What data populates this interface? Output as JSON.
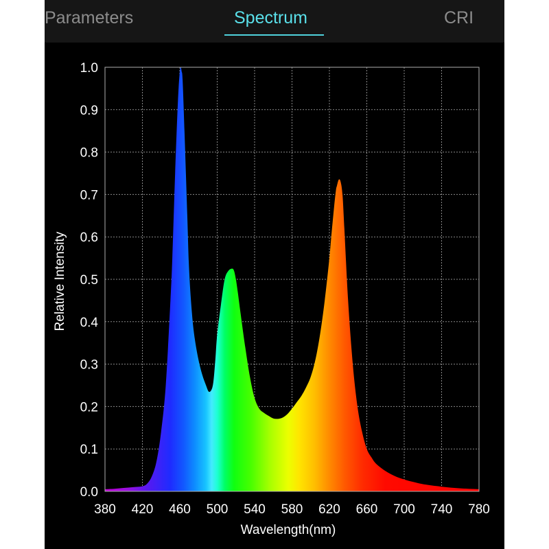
{
  "tabs": [
    {
      "label": "Parameters",
      "active": false
    },
    {
      "label": "Spectrum",
      "active": true
    },
    {
      "label": "CRI",
      "active": false
    }
  ],
  "colors": {
    "accent": "#4fd3dd",
    "tab_inactive": "#8c8c8c",
    "tabbar_bg": "#161616",
    "background": "#000000",
    "grid": "#9a9a9a",
    "text": "#ffffff"
  },
  "chart_data": {
    "type": "area",
    "title": "",
    "xlabel": "Wavelength(nm)",
    "ylabel": "Relative Intensity",
    "xlim": [
      380,
      780
    ],
    "ylim": [
      0,
      1
    ],
    "x_ticks": [
      380,
      420,
      460,
      500,
      540,
      580,
      620,
      660,
      700,
      740,
      780
    ],
    "y_ticks": [
      "0.0",
      "0.1",
      "0.2",
      "0.3",
      "0.4",
      "0.5",
      "0.6",
      "0.7",
      "0.8",
      "0.9",
      "1.0"
    ],
    "grid": true,
    "fill": "visible-spectrum color gradient",
    "series": [
      {
        "x": [
          380,
          390,
          400,
          410,
          420,
          425,
          430,
          435,
          440,
          445,
          450,
          452,
          455,
          458,
          460,
          461,
          462,
          463,
          465,
          468,
          470,
          473,
          476,
          480,
          484,
          488,
          491,
          494,
          496,
          498,
          500,
          504,
          508,
          512,
          516,
          518,
          520,
          522,
          525,
          530,
          535,
          540,
          545,
          550,
          555,
          560,
          565,
          570,
          575,
          580,
          585,
          590,
          595,
          600,
          605,
          610,
          615,
          620,
          622,
          625,
          627,
          628,
          630,
          632,
          634,
          636,
          640,
          645,
          650,
          655,
          660,
          665,
          670,
          680,
          690,
          700,
          710,
          720,
          740,
          760,
          780
        ],
        "y": [
          0.005,
          0.006,
          0.008,
          0.01,
          0.012,
          0.018,
          0.035,
          0.07,
          0.14,
          0.25,
          0.45,
          0.55,
          0.75,
          0.92,
          0.99,
          1.0,
          0.99,
          0.97,
          0.85,
          0.65,
          0.52,
          0.42,
          0.36,
          0.31,
          0.275,
          0.25,
          0.235,
          0.24,
          0.26,
          0.31,
          0.37,
          0.44,
          0.5,
          0.52,
          0.525,
          0.52,
          0.5,
          0.47,
          0.42,
          0.34,
          0.27,
          0.22,
          0.195,
          0.185,
          0.178,
          0.172,
          0.171,
          0.174,
          0.182,
          0.195,
          0.21,
          0.225,
          0.245,
          0.27,
          0.31,
          0.37,
          0.45,
          0.55,
          0.6,
          0.67,
          0.71,
          0.72,
          0.735,
          0.73,
          0.7,
          0.62,
          0.45,
          0.3,
          0.2,
          0.14,
          0.1,
          0.08,
          0.065,
          0.048,
          0.036,
          0.028,
          0.022,
          0.017,
          0.011,
          0.007,
          0.005
        ]
      }
    ]
  }
}
